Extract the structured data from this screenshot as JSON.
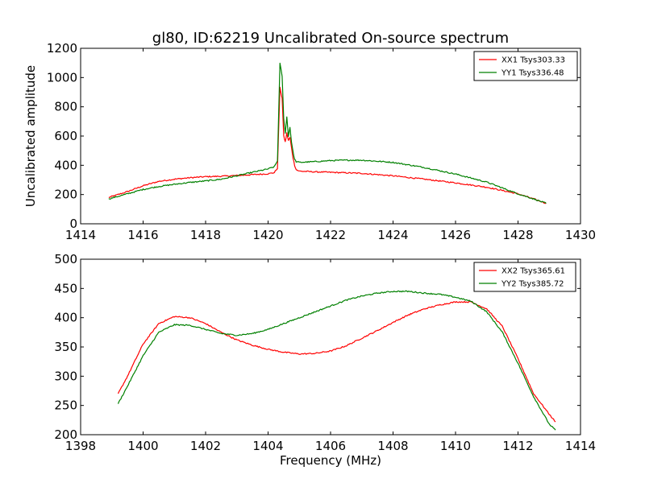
{
  "title": "gl80, ID:62219 Uncalibrated On-source spectrum",
  "chart_data": [
    {
      "type": "line",
      "title": "gl80, ID:62219 Uncalibrated On-source spectrum",
      "xlabel": "",
      "ylabel": "Uncalibrated amplitude",
      "xlim": [
        1414,
        1430
      ],
      "ylim": [
        0,
        1200
      ],
      "xticks": [
        1414,
        1416,
        1418,
        1420,
        1422,
        1424,
        1426,
        1428,
        1430
      ],
      "yticks": [
        0,
        200,
        400,
        600,
        800,
        1000,
        1200
      ],
      "xtick_labels": [
        "1414",
        "1416",
        "1418",
        "1420",
        "1422",
        "1424",
        "1426",
        "1428",
        "1430"
      ],
      "ytick_labels": [
        "0",
        "200",
        "400",
        "600",
        "800",
        "1000",
        "1200"
      ],
      "grid": false,
      "legend_position": "top-right",
      "series": [
        {
          "name": "XX1 Tsys303.33",
          "color": "#ff0000",
          "x": [
            1414.9,
            1415.5,
            1416.0,
            1416.5,
            1417.0,
            1417.5,
            1418.0,
            1418.5,
            1419.0,
            1419.5,
            1420.0,
            1420.2,
            1420.3,
            1420.38,
            1420.45,
            1420.5,
            1420.55,
            1420.6,
            1420.65,
            1420.7,
            1420.75,
            1420.8,
            1420.85,
            1420.9,
            1421.0,
            1421.5,
            1422.0,
            1423.0,
            1424.0,
            1425.0,
            1426.0,
            1427.0,
            1428.0,
            1428.5,
            1428.9
          ],
          "y": [
            180,
            220,
            260,
            290,
            305,
            315,
            322,
            325,
            330,
            336,
            342,
            350,
            380,
            930,
            860,
            600,
            560,
            620,
            570,
            590,
            520,
            450,
            400,
            370,
            360,
            355,
            352,
            345,
            328,
            305,
            280,
            250,
            205,
            170,
            140
          ]
        },
        {
          "name": "YY1 Tsys336.48",
          "color": "#008000",
          "x": [
            1414.9,
            1415.5,
            1416.0,
            1416.5,
            1417.0,
            1417.5,
            1418.0,
            1418.5,
            1419.0,
            1419.5,
            1420.0,
            1420.2,
            1420.3,
            1420.38,
            1420.45,
            1420.5,
            1420.55,
            1420.6,
            1420.65,
            1420.7,
            1420.75,
            1420.8,
            1420.85,
            1420.9,
            1421.0,
            1421.5,
            1422.0,
            1422.5,
            1423.0,
            1424.0,
            1425.0,
            1426.0,
            1427.0,
            1428.0,
            1428.5,
            1428.9
          ],
          "y": [
            170,
            205,
            235,
            255,
            270,
            283,
            293,
            305,
            328,
            352,
            375,
            390,
            430,
            1095,
            1010,
            720,
            620,
            730,
            600,
            660,
            560,
            490,
            440,
            425,
            420,
            425,
            432,
            435,
            435,
            420,
            385,
            340,
            285,
            205,
            170,
            140
          ]
        }
      ]
    },
    {
      "type": "line",
      "title": "",
      "xlabel": "Frequency (MHz)",
      "ylabel": "",
      "xlim": [
        1398,
        1414
      ],
      "ylim": [
        200,
        500
      ],
      "xticks": [
        1398,
        1400,
        1402,
        1404,
        1406,
        1408,
        1410,
        1412,
        1414
      ],
      "yticks": [
        200,
        250,
        300,
        350,
        400,
        450,
        500
      ],
      "xtick_labels": [
        "1398",
        "1400",
        "1402",
        "1404",
        "1406",
        "1408",
        "1410",
        "1412",
        "1414"
      ],
      "ytick_labels": [
        "200",
        "250",
        "300",
        "350",
        "400",
        "450",
        "500"
      ],
      "grid": false,
      "legend_position": "top-right",
      "series": [
        {
          "name": "XX2 Tsys365.61",
          "color": "#ff0000",
          "x": [
            1399.2,
            1399.5,
            1400.0,
            1400.5,
            1401.0,
            1401.5,
            1402.0,
            1402.5,
            1403.0,
            1403.5,
            1404.0,
            1404.5,
            1405.0,
            1405.5,
            1406.0,
            1406.5,
            1407.0,
            1407.5,
            1408.0,
            1408.5,
            1409.0,
            1409.5,
            1410.0,
            1410.5,
            1411.0,
            1411.5,
            1412.0,
            1412.5,
            1413.0,
            1413.2
          ],
          "y": [
            270,
            300,
            355,
            390,
            402,
            400,
            390,
            375,
            362,
            353,
            346,
            341,
            338,
            339,
            343,
            352,
            365,
            378,
            392,
            405,
            415,
            422,
            427,
            427,
            415,
            385,
            330,
            270,
            235,
            222
          ]
        },
        {
          "name": "YY2 Tsys385.72",
          "color": "#008000",
          "x": [
            1399.2,
            1399.5,
            1400.0,
            1400.5,
            1401.0,
            1401.5,
            1402.0,
            1402.5,
            1403.0,
            1403.5,
            1404.0,
            1404.5,
            1405.0,
            1405.5,
            1406.0,
            1406.5,
            1407.0,
            1407.5,
            1408.0,
            1408.5,
            1409.0,
            1409.5,
            1410.0,
            1410.5,
            1411.0,
            1411.5,
            1412.0,
            1412.5,
            1413.0,
            1413.2
          ],
          "y": [
            253,
            283,
            335,
            375,
            388,
            387,
            380,
            373,
            370,
            373,
            380,
            390,
            400,
            410,
            420,
            430,
            437,
            442,
            445,
            445,
            442,
            440,
            435,
            428,
            410,
            375,
            322,
            265,
            218,
            208
          ]
        }
      ]
    }
  ]
}
